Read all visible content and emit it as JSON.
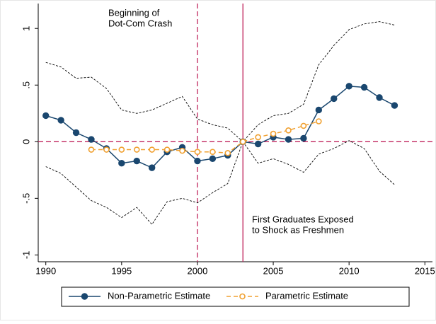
{
  "chart_data": {
    "type": "line",
    "x": [
      1990,
      1991,
      1992,
      1993,
      1994,
      1995,
      1996,
      1997,
      1998,
      1999,
      2000,
      2001,
      2002,
      2003,
      2004,
      2005,
      2006,
      2007,
      2008,
      2009,
      2010,
      2011,
      2012,
      2013
    ],
    "xlim": [
      1989.5,
      2015.5
    ],
    "xticks": [
      1990,
      1995,
      2000,
      2005,
      2010,
      2015
    ],
    "ylim": [
      -1.06,
      1.22
    ],
    "yticks": [
      {
        "value": -1,
        "label": "-1"
      },
      {
        "value": -0.5,
        "label": "-.5"
      },
      0,
      {
        "value": 0.5,
        "label": ".5"
      },
      1
    ],
    "series": [
      {
        "name": "Non-Parametric Estimate",
        "color": "#1a476f",
        "marker": "filled",
        "dash": "solid",
        "values": [
          0.23,
          0.19,
          0.08,
          0.02,
          -0.06,
          -0.19,
          -0.17,
          -0.23,
          -0.09,
          -0.05,
          -0.17,
          -0.15,
          -0.12,
          0,
          -0.02,
          0.04,
          0.02,
          0.03,
          0.28,
          0.38,
          0.49,
          0.48,
          0.39,
          0.32
        ]
      },
      {
        "name": "Parametric Estimate",
        "color": "#f0a030",
        "marker": "hollow",
        "dash": "dashed",
        "values": [
          null,
          null,
          null,
          -0.07,
          -0.07,
          -0.07,
          -0.07,
          -0.07,
          -0.07,
          -0.08,
          -0.09,
          -0.09,
          -0.1,
          0,
          0.04,
          0.07,
          0.1,
          0.14,
          0.18,
          null,
          null,
          null,
          null,
          null
        ]
      }
    ],
    "ci_upper": [
      0.7,
      0.66,
      0.56,
      0.57,
      0.47,
      0.28,
      0.25,
      0.28,
      0.34,
      0.4,
      0.2,
      0.15,
      0.12,
      0,
      0.15,
      0.23,
      0.25,
      0.33,
      0.68,
      0.85,
      0.99,
      1.04,
      1.06,
      1.03
    ],
    "ci_lower": [
      -0.22,
      -0.28,
      -0.4,
      -0.52,
      -0.58,
      -0.67,
      -0.58,
      -0.73,
      -0.53,
      -0.5,
      -0.54,
      -0.45,
      -0.37,
      0,
      -0.19,
      -0.15,
      -0.2,
      -0.27,
      -0.11,
      -0.06,
      0.01,
      -0.06,
      -0.26,
      -0.38
    ],
    "ci_color": "#000000",
    "reference_color": "#c0245c",
    "reference_x": [
      {
        "value": 2000,
        "style": "dashed"
      },
      {
        "value": 2003,
        "style": "solid"
      }
    ],
    "reference_y": [
      {
        "value": 0,
        "style": "dashed"
      }
    ],
    "annotations": [
      {
        "lines": [
          "Beginning of",
          "Dot-Com Crash"
        ]
      },
      {
        "lines": [
          "First Graduates Exposed",
          "to Shock as Freshmen"
        ]
      }
    ]
  }
}
